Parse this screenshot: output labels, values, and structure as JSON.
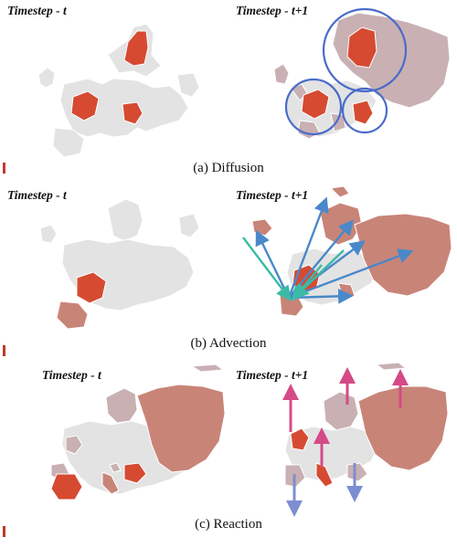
{
  "panels": [
    {
      "label_left": "Timestep - t",
      "label_right": "Timestep - t+1",
      "caption": "(a)  Diffusion"
    },
    {
      "label_left": "Timestep - t",
      "label_right": "Timestep - t+1",
      "caption": "(b)  Advection"
    },
    {
      "label_left": "Timestep - t",
      "label_right": "Timestep - t+1",
      "caption": "(c)  Reaction"
    }
  ],
  "colors": {
    "base_country": "#e3e3e3",
    "border": "#ffffff",
    "hot": "#d64a32",
    "warm": "#c98478",
    "pale": "#c9b0b3",
    "circle": "#4a6cc9",
    "arrow_teal": "#3bbba6",
    "arrow_blue": "#4a88c9",
    "arrow_pink": "#d44a86",
    "arrow_periwinkle": "#7d8ed0"
  }
}
